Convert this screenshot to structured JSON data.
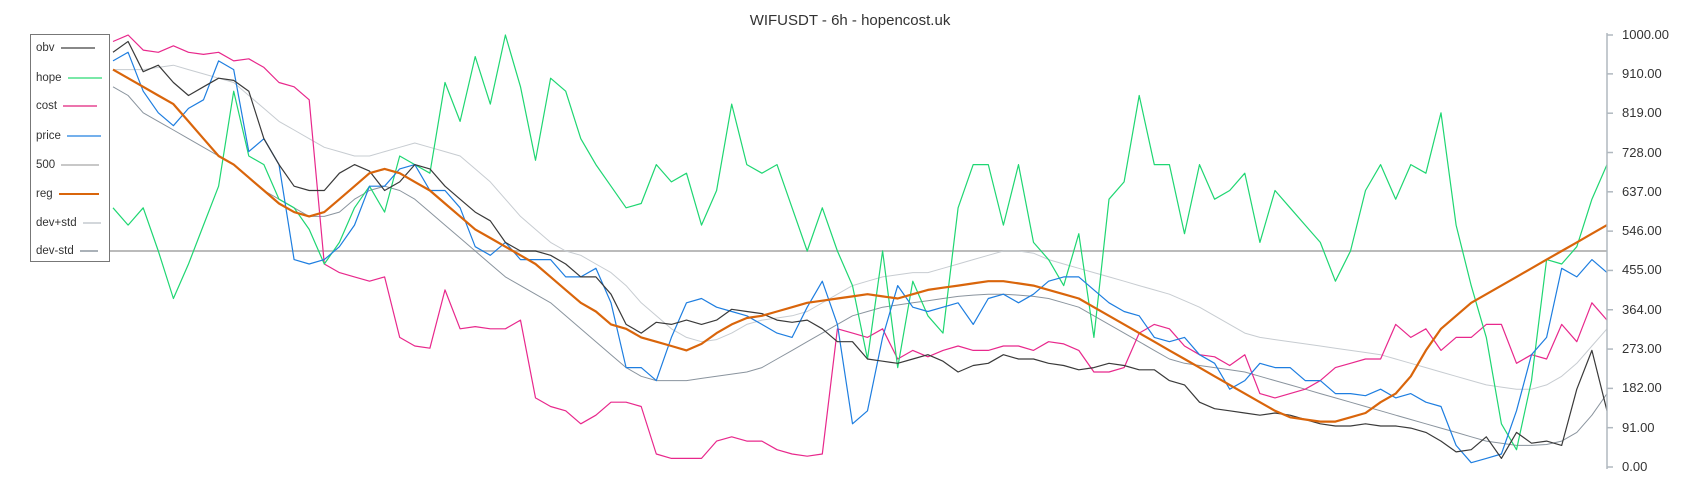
{
  "chart_data": {
    "type": "line",
    "title": "WIFUSDT - 6h - hopencost.uk",
    "xlabel": "",
    "ylabel": "",
    "ylim": [
      0,
      1000
    ],
    "grid": false,
    "legend_position": "upper-left (inside)",
    "y_axis_position": "right",
    "y_ticks": [
      "1000.00",
      "910.00",
      "819.00",
      "728.00",
      "637.00",
      "546.00",
      "455.00",
      "364.00",
      "273.00",
      "182.00",
      "91.00",
      "0.00"
    ],
    "x_points": 100,
    "series": [
      {
        "name": "obv",
        "color": "#3a3a3a",
        "width": 1.2,
        "values": [
          960,
          985,
          915,
          930,
          890,
          860,
          880,
          900,
          895,
          870,
          760,
          700,
          650,
          640,
          640,
          680,
          700,
          685,
          640,
          660,
          700,
          690,
          650,
          620,
          590,
          570,
          520,
          500,
          500,
          490,
          470,
          440,
          440,
          400,
          330,
          310,
          335,
          330,
          340,
          330,
          340,
          365,
          360,
          355,
          340,
          335,
          340,
          320,
          290,
          290,
          250,
          245,
          240,
          250,
          260,
          245,
          220,
          235,
          240,
          260,
          250,
          250,
          240,
          235,
          225,
          230,
          240,
          235,
          225,
          225,
          200,
          190,
          150,
          135,
          130,
          125,
          120,
          125,
          120,
          110,
          100,
          95,
          95,
          100,
          95,
          95,
          90,
          80,
          60,
          35,
          40,
          70,
          20,
          80,
          55,
          60,
          50,
          180,
          270,
          130
        ]
      },
      {
        "name": "hope",
        "color": "#1fd672",
        "width": 1.2,
        "values": [
          600,
          560,
          600,
          500,
          390,
          470,
          560,
          650,
          870,
          720,
          700,
          620,
          600,
          550,
          470,
          520,
          600,
          650,
          590,
          720,
          700,
          680,
          890,
          800,
          950,
          840,
          1000,
          880,
          710,
          900,
          870,
          760,
          700,
          650,
          600,
          610,
          700,
          660,
          680,
          560,
          640,
          840,
          700,
          680,
          700,
          600,
          500,
          600,
          500,
          420,
          250,
          500,
          230,
          430,
          350,
          310,
          600,
          700,
          700,
          560,
          700,
          520,
          480,
          420,
          540,
          300,
          620,
          660,
          860,
          700,
          700,
          540,
          700,
          620,
          640,
          680,
          520,
          640,
          600,
          560,
          520,
          430,
          500,
          640,
          700,
          620,
          700,
          680,
          820,
          560,
          420,
          300,
          100,
          40,
          200,
          480,
          470,
          510,
          620,
          700
        ]
      },
      {
        "name": "cost",
        "color": "#e8288c",
        "width": 1.2,
        "values": [
          985,
          1000,
          965,
          960,
          975,
          960,
          955,
          960,
          940,
          945,
          925,
          890,
          880,
          850,
          470,
          450,
          440,
          430,
          440,
          300,
          280,
          275,
          410,
          320,
          325,
          320,
          320,
          340,
          160,
          140,
          130,
          100,
          120,
          150,
          150,
          140,
          30,
          20,
          20,
          20,
          60,
          70,
          60,
          60,
          40,
          30,
          25,
          30,
          320,
          310,
          300,
          320,
          250,
          270,
          255,
          270,
          280,
          270,
          270,
          280,
          280,
          270,
          290,
          285,
          270,
          220,
          220,
          230,
          310,
          330,
          320,
          280,
          260,
          255,
          235,
          260,
          170,
          160,
          170,
          180,
          200,
          230,
          240,
          250,
          250,
          330,
          300,
          320,
          270,
          300,
          300,
          330,
          330,
          240,
          260,
          250,
          330,
          290,
          380,
          340
        ]
      },
      {
        "name": "price",
        "color": "#1e7ee0",
        "width": 1.2,
        "values": [
          940,
          960,
          870,
          820,
          790,
          830,
          850,
          940,
          920,
          730,
          760,
          700,
          480,
          470,
          480,
          510,
          560,
          650,
          650,
          690,
          700,
          640,
          640,
          600,
          510,
          490,
          520,
          480,
          480,
          480,
          440,
          440,
          460,
          380,
          230,
          230,
          200,
          300,
          380,
          390,
          370,
          360,
          350,
          330,
          310,
          300,
          370,
          430,
          330,
          100,
          130,
          300,
          420,
          370,
          360,
          370,
          380,
          330,
          390,
          400,
          380,
          400,
          430,
          440,
          440,
          410,
          380,
          360,
          350,
          300,
          290,
          300,
          260,
          240,
          180,
          200,
          240,
          230,
          230,
          200,
          200,
          170,
          170,
          165,
          180,
          160,
          170,
          150,
          140,
          50,
          10,
          20,
          30,
          130,
          260,
          300,
          460,
          440,
          480,
          450
        ]
      },
      {
        "name": "500",
        "color": "#bbbbbb",
        "width": 2,
        "values": [
          500,
          500,
          500,
          500,
          500,
          500,
          500,
          500,
          500,
          500,
          500,
          500,
          500,
          500,
          500,
          500,
          500,
          500,
          500,
          500,
          500,
          500,
          500,
          500,
          500,
          500,
          500,
          500,
          500,
          500,
          500,
          500,
          500,
          500,
          500,
          500,
          500,
          500,
          500,
          500,
          500,
          500,
          500,
          500,
          500,
          500,
          500,
          500,
          500,
          500,
          500,
          500,
          500,
          500,
          500,
          500,
          500,
          500,
          500,
          500,
          500,
          500,
          500,
          500,
          500,
          500,
          500,
          500,
          500,
          500,
          500,
          500,
          500,
          500,
          500,
          500,
          500,
          500,
          500,
          500,
          500,
          500,
          500,
          500,
          500,
          500,
          500,
          500,
          500,
          500,
          500,
          500,
          500,
          500,
          500,
          500,
          500,
          500,
          500,
          500
        ]
      },
      {
        "name": "reg",
        "color": "#d9650b",
        "width": 2.2,
        "values": [
          920,
          900,
          880,
          860,
          840,
          800,
          760,
          720,
          700,
          670,
          640,
          610,
          590,
          580,
          590,
          620,
          650,
          680,
          690,
          680,
          660,
          640,
          610,
          580,
          550,
          530,
          510,
          490,
          470,
          440,
          410,
          380,
          360,
          330,
          320,
          300,
          290,
          280,
          270,
          285,
          310,
          330,
          345,
          350,
          360,
          370,
          380,
          385,
          390,
          395,
          400,
          395,
          390,
          400,
          410,
          415,
          420,
          425,
          430,
          430,
          425,
          420,
          410,
          400,
          390,
          370,
          350,
          330,
          310,
          290,
          270,
          250,
          230,
          210,
          190,
          170,
          150,
          130,
          115,
          110,
          105,
          105,
          115,
          125,
          150,
          170,
          210,
          270,
          320,
          350,
          380,
          400,
          420,
          440,
          460,
          480,
          500,
          520,
          540,
          560
        ]
      },
      {
        "name": "dev+std",
        "color": "#c7ccd1",
        "width": 1,
        "values": [
          920,
          920,
          920,
          925,
          930,
          920,
          910,
          900,
          890,
          860,
          830,
          800,
          780,
          760,
          740,
          730,
          720,
          720,
          730,
          740,
          750,
          740,
          730,
          720,
          690,
          660,
          620,
          580,
          550,
          520,
          500,
          490,
          470,
          450,
          420,
          380,
          350,
          320,
          300,
          290,
          295,
          310,
          330,
          340,
          345,
          350,
          360,
          380,
          400,
          420,
          430,
          440,
          445,
          450,
          450,
          460,
          470,
          480,
          490,
          500,
          500,
          495,
          480,
          470,
          460,
          450,
          440,
          430,
          420,
          410,
          400,
          385,
          370,
          350,
          330,
          310,
          300,
          295,
          290,
          285,
          280,
          275,
          270,
          265,
          260,
          250,
          240,
          230,
          220,
          210,
          200,
          190,
          185,
          180,
          180,
          190,
          210,
          240,
          280,
          320
        ]
      },
      {
        "name": "dev-std",
        "color": "#8a949e",
        "width": 1,
        "values": [
          880,
          860,
          820,
          800,
          780,
          760,
          740,
          720,
          700,
          670,
          640,
          620,
          600,
          580,
          580,
          590,
          620,
          640,
          650,
          640,
          620,
          590,
          560,
          530,
          500,
          470,
          440,
          420,
          400,
          380,
          350,
          320,
          290,
          260,
          230,
          210,
          200,
          200,
          200,
          205,
          210,
          215,
          220,
          230,
          250,
          270,
          290,
          310,
          330,
          350,
          360,
          370,
          375,
          380,
          385,
          390,
          395,
          398,
          400,
          400,
          398,
          395,
          390,
          380,
          370,
          350,
          330,
          310,
          290,
          270,
          250,
          240,
          235,
          230,
          225,
          220,
          210,
          200,
          190,
          180,
          170,
          160,
          150,
          140,
          130,
          120,
          110,
          100,
          90,
          80,
          70,
          60,
          55,
          50,
          50,
          52,
          60,
          80,
          120,
          170
        ]
      }
    ]
  },
  "title": "WIFUSDT - 6h - hopencost.uk",
  "legend": [
    {
      "label": "obv",
      "color": "#888888"
    },
    {
      "label": "hope",
      "color": "#7ae8a8"
    },
    {
      "label": "cost",
      "color": "#ec74ad"
    },
    {
      "label": "price",
      "color": "#74b0ec"
    },
    {
      "label": "500",
      "color": "#c8c8c8"
    },
    {
      "label": "reg",
      "color": "#d9650b"
    },
    {
      "label": "dev+std",
      "color": "#d3d7db"
    },
    {
      "label": "dev-std",
      "color": "#aab1b8"
    }
  ],
  "y_axis": {
    "ticks": [
      "1000.00",
      "910.00",
      "819.00",
      "728.00",
      "637.00",
      "546.00",
      "455.00",
      "364.00",
      "273.00",
      "182.00",
      "91.00",
      "0.00"
    ]
  }
}
